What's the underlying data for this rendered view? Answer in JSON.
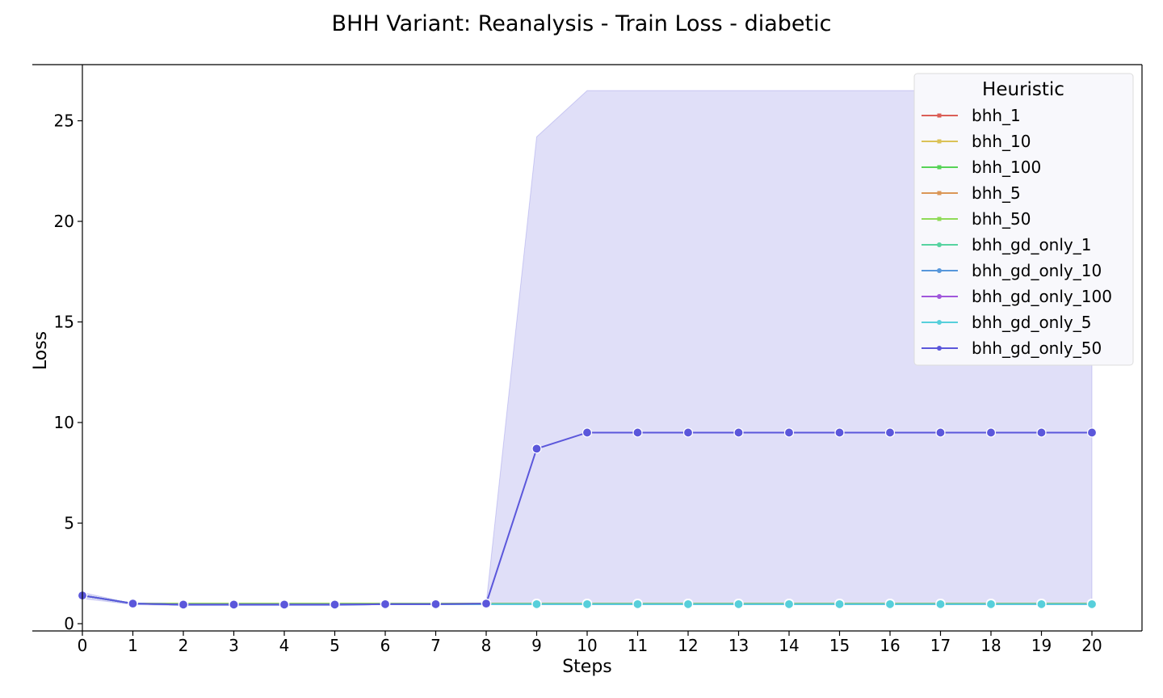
{
  "chart_data": {
    "type": "line",
    "title": "BHH Variant: Reanalysis - Train Loss - diabetic",
    "xlabel": "Steps",
    "ylabel": "Loss",
    "xlim": [
      0,
      20
    ],
    "ylim": [
      -0.4,
      27.6
    ],
    "x": [
      0,
      1,
      2,
      3,
      4,
      5,
      6,
      7,
      8,
      9,
      10,
      11,
      12,
      13,
      14,
      15,
      16,
      17,
      18,
      19,
      20
    ],
    "xticks": [
      0,
      1,
      2,
      3,
      4,
      5,
      6,
      7,
      8,
      9,
      10,
      11,
      12,
      13,
      14,
      15,
      16,
      17,
      18,
      19,
      20
    ],
    "yticks": [
      0,
      5,
      10,
      15,
      20,
      25
    ],
    "grid": false,
    "legend": {
      "title": "Heuristic",
      "position": "top-right"
    },
    "series": [
      {
        "name": "bhh_1",
        "color": "#db5f57",
        "values": [
          1.4,
          1.0,
          1.0,
          1.0,
          1.0,
          1.0,
          1.0,
          1.0,
          1.0,
          1.0,
          1.0,
          1.0,
          1.0,
          1.0,
          1.0,
          1.0,
          1.0,
          1.0,
          1.0,
          1.0,
          1.0
        ]
      },
      {
        "name": "bhh_10",
        "color": "#dbc257",
        "values": [
          1.4,
          1.0,
          1.0,
          1.0,
          1.0,
          1.0,
          1.0,
          1.0,
          1.0,
          1.0,
          1.0,
          1.0,
          1.0,
          1.0,
          1.0,
          1.0,
          1.0,
          1.0,
          1.0,
          1.0,
          1.0
        ]
      },
      {
        "name": "bhh_100",
        "color": "#57d357",
        "values": [
          1.4,
          1.0,
          1.0,
          1.0,
          1.0,
          1.0,
          1.0,
          1.0,
          1.0,
          1.0,
          1.0,
          1.0,
          1.0,
          1.0,
          1.0,
          1.0,
          1.0,
          1.0,
          1.0,
          1.0,
          1.0
        ]
      },
      {
        "name": "bhh_5",
        "color": "#db9757",
        "values": [
          1.4,
          1.0,
          1.0,
          1.0,
          1.0,
          1.0,
          1.0,
          1.0,
          1.0,
          1.0,
          1.0,
          1.0,
          1.0,
          1.0,
          1.0,
          1.0,
          1.0,
          1.0,
          1.0,
          1.0,
          1.0
        ]
      },
      {
        "name": "bhh_50",
        "color": "#8fdb57",
        "values": [
          1.4,
          1.0,
          1.0,
          1.0,
          1.0,
          1.0,
          1.0,
          1.0,
          1.0,
          1.0,
          1.0,
          1.0,
          1.0,
          1.0,
          1.0,
          1.0,
          1.0,
          1.0,
          1.0,
          1.0,
          1.0
        ]
      },
      {
        "name": "bhh_gd_only_1",
        "color": "#57d3a0",
        "values": [
          1.4,
          1.0,
          0.95,
          0.95,
          0.95,
          0.95,
          0.97,
          0.97,
          0.97,
          0.97,
          0.97,
          0.97,
          0.97,
          0.97,
          0.97,
          0.97,
          0.97,
          0.97,
          0.97,
          0.97,
          0.97
        ]
      },
      {
        "name": "bhh_gd_only_10",
        "color": "#5797db",
        "values": [
          1.4,
          1.0,
          0.95,
          0.95,
          0.95,
          0.95,
          0.97,
          0.97,
          0.97,
          0.97,
          0.97,
          0.97,
          0.97,
          0.97,
          0.97,
          0.97,
          0.97,
          0.97,
          0.97,
          0.97,
          0.97
        ]
      },
      {
        "name": "bhh_gd_only_100",
        "color": "#a057db",
        "values": [
          1.4,
          1.0,
          0.95,
          0.95,
          0.95,
          0.95,
          0.97,
          0.97,
          0.97,
          0.97,
          0.97,
          0.97,
          0.97,
          0.97,
          0.97,
          0.97,
          0.97,
          0.97,
          0.97,
          0.97,
          0.97
        ]
      },
      {
        "name": "bhh_gd_only_5",
        "color": "#57cfdb",
        "values": [
          1.4,
          1.0,
          0.95,
          0.95,
          0.95,
          0.95,
          0.97,
          0.97,
          0.97,
          0.97,
          0.97,
          0.97,
          0.97,
          0.97,
          0.97,
          0.97,
          0.97,
          0.97,
          0.97,
          0.97,
          0.97
        ]
      },
      {
        "name": "bhh_gd_only_50",
        "color": "#5b57db",
        "values": [
          1.4,
          1.0,
          0.95,
          0.95,
          0.95,
          0.95,
          0.97,
          0.97,
          1.0,
          8.7,
          9.5,
          9.5,
          9.5,
          9.5,
          9.5,
          9.5,
          9.5,
          9.5,
          9.5,
          9.5,
          9.5
        ],
        "ci_low": [
          1.25,
          0.95,
          0.9,
          0.9,
          0.9,
          0.9,
          0.95,
          0.95,
          1.0,
          1.0,
          1.0,
          1.0,
          1.0,
          1.0,
          1.0,
          1.0,
          1.0,
          1.0,
          1.0,
          1.0,
          1.0
        ],
        "ci_high": [
          1.55,
          1.0,
          1.0,
          1.0,
          1.0,
          1.0,
          1.0,
          1.0,
          1.0,
          24.2,
          26.5,
          26.5,
          26.5,
          26.5,
          26.5,
          26.5,
          26.5,
          26.5,
          26.5,
          26.5,
          26.5
        ]
      }
    ]
  }
}
